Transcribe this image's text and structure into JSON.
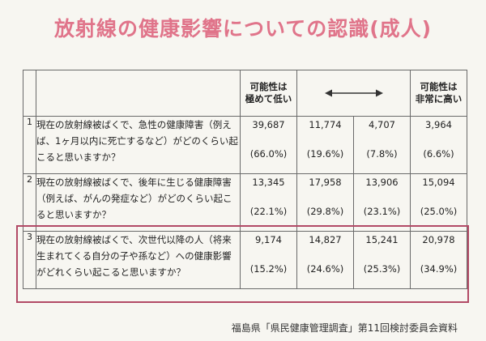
{
  "title": "放射線の健康影響についての認識(成人)",
  "header": {
    "col1": "可能性は\n極めて低い",
    "col4": "可能性は\n非常に高い"
  },
  "rows": [
    {
      "no": "1",
      "question": "現在の放射線被ばくで、急性の健康障害（例えば、1ヶ月以内に死亡するなど）がどのくらい起こると思いますか？",
      "values": [
        "39,687",
        "11,774",
        "4,707",
        "3,964"
      ],
      "percents": [
        "(66.0%)",
        "(19.6%)",
        "(7.8%)",
        "(6.6%)"
      ]
    },
    {
      "no": "2",
      "question": "現在の放射線被ばくで、後年に生じる健康障害（例えば、がんの発症など）がどのくらい起こると思いますか？",
      "values": [
        "13,345",
        "17,958",
        "13,906",
        "15,094"
      ],
      "percents": [
        "(22.1%)",
        "(29.8%)",
        "(23.1%)",
        "(25.0%)"
      ]
    },
    {
      "no": "3",
      "question": "現在の放射線被ばくで、次世代以降の人（将来生まれてくる自分の子や孫など）への健康影響がどれくらい起こると思いますか？",
      "values": [
        "9,174",
        "14,827",
        "15,241",
        "20,978"
      ],
      "percents": [
        "(15.2%)",
        "(24.6%)",
        "(25.3%)",
        "(34.9%)"
      ]
    }
  ],
  "source": "福島県「県民健康管理調査」第11回検討委員会資料",
  "colors": {
    "title": "#e0748a",
    "highlight": "#b24a66"
  }
}
